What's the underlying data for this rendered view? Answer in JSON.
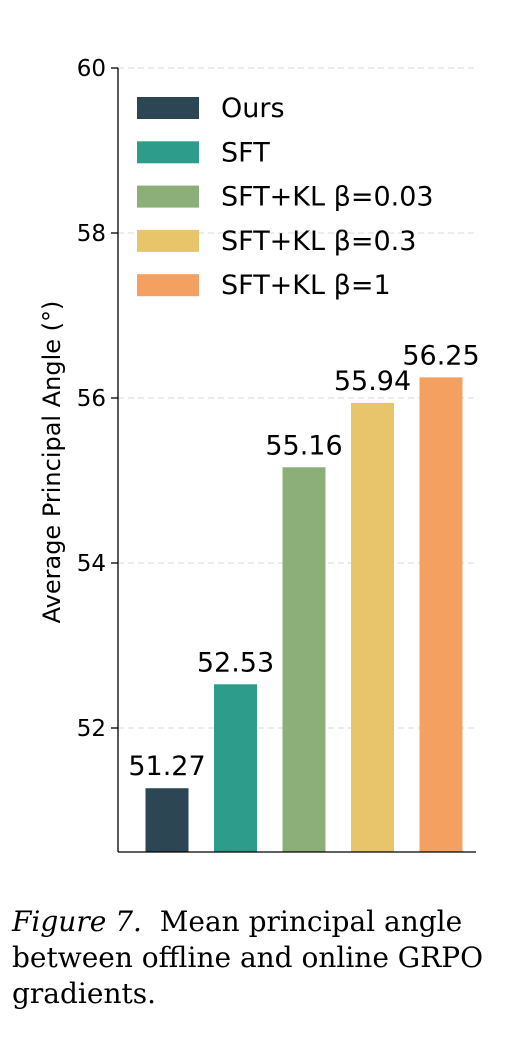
{
  "chart_data": {
    "type": "bar",
    "categories": [
      "Ours",
      "SFT",
      "SFT+KL β=0.03",
      "SFT+KL β=0.3",
      "SFT+KL β=1"
    ],
    "values": [
      51.27,
      52.53,
      55.16,
      55.94,
      56.25
    ],
    "data_labels": [
      "51.27",
      "52.53",
      "55.16",
      "55.94",
      "56.25"
    ],
    "colors": [
      "#2c4653",
      "#2e9c8b",
      "#8caf79",
      "#e8c46b",
      "#f3a061"
    ],
    "ylabel": "Average Principal Angle (°)",
    "xlabel": "",
    "ylim": [
      50.5,
      60
    ],
    "yticks": [
      52,
      54,
      56,
      58,
      60
    ],
    "ytick_labels": [
      "52",
      "54",
      "56",
      "58",
      "60"
    ],
    "grid": "horizontal dashed",
    "legend_placement": "top-left"
  },
  "caption": {
    "figure_label": "Figure 7.",
    "text": "Mean principal angle between offline and online GRPO gradients."
  }
}
